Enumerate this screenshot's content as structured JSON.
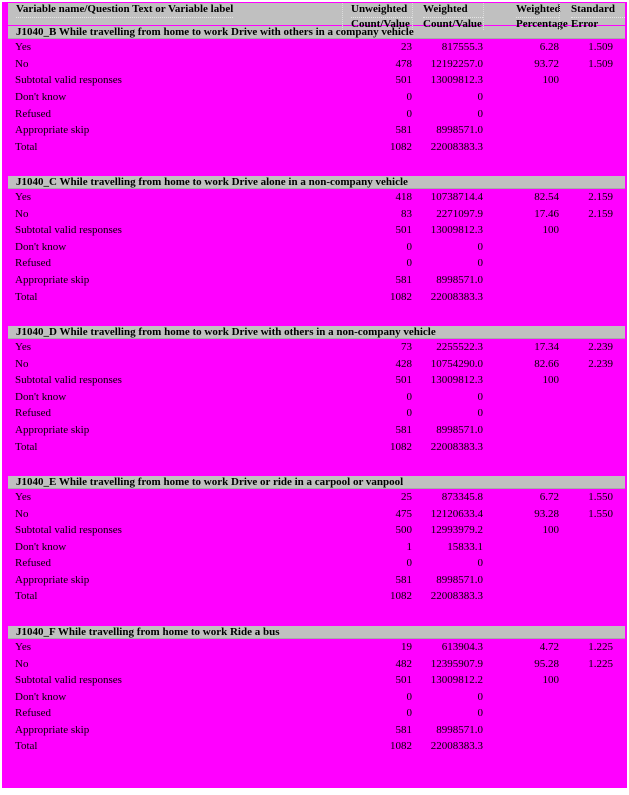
{
  "page": {
    "bg_color": "#FF00FF",
    "bar_color": "#C0C0C0",
    "text_color": "#000000"
  },
  "header": {
    "variable_label": "Variable name/Question Text or Variable label",
    "columns": [
      {
        "line1": "Unweighted",
        "line2": "Count/Value"
      },
      {
        "line1": "Weighted",
        "line2": "Count/Value"
      },
      {
        "line1": "Weighted",
        "line2": "Percentage"
      },
      {
        "line1": "Standard",
        "line2": "Error"
      }
    ]
  },
  "sections": [
    {
      "title": "J1040_B While travelling from home to work Drive with others in a company vehicle",
      "rows": [
        {
          "label": "Yes",
          "unweighted": "23",
          "weighted": "817555.3",
          "pct": "6.28",
          "se": "1.509"
        },
        {
          "label": "No",
          "unweighted": "478",
          "weighted": "12192257.0",
          "pct": "93.72",
          "se": "1.509"
        },
        {
          "label": "Subtotal valid responses",
          "unweighted": "501",
          "weighted": "13009812.3",
          "pct": "100",
          "se": ""
        },
        {
          "label": "Don't know",
          "unweighted": "0",
          "weighted": "0",
          "pct": "",
          "se": ""
        },
        {
          "label": "Refused",
          "unweighted": "0",
          "weighted": "0",
          "pct": "",
          "se": ""
        },
        {
          "label": "Appropriate skip",
          "unweighted": "581",
          "weighted": "8998571.0",
          "pct": "",
          "se": ""
        },
        {
          "label": "Total",
          "unweighted": "1082",
          "weighted": "22008383.3",
          "pct": "",
          "se": ""
        }
      ]
    },
    {
      "title": "J1040_C While travelling from home to work Drive alone in a non-company vehicle",
      "rows": [
        {
          "label": "Yes",
          "unweighted": "418",
          "weighted": "10738714.4",
          "pct": "82.54",
          "se": "2.159"
        },
        {
          "label": "No",
          "unweighted": "83",
          "weighted": "2271097.9",
          "pct": "17.46",
          "se": "2.159"
        },
        {
          "label": "Subtotal valid responses",
          "unweighted": "501",
          "weighted": "13009812.3",
          "pct": "100",
          "se": ""
        },
        {
          "label": "Don't know",
          "unweighted": "0",
          "weighted": "0",
          "pct": "",
          "se": ""
        },
        {
          "label": "Refused",
          "unweighted": "0",
          "weighted": "0",
          "pct": "",
          "se": ""
        },
        {
          "label": "Appropriate skip",
          "unweighted": "581",
          "weighted": "8998571.0",
          "pct": "",
          "se": ""
        },
        {
          "label": "Total",
          "unweighted": "1082",
          "weighted": "22008383.3",
          "pct": "",
          "se": ""
        }
      ]
    },
    {
      "title": "J1040_D While travelling from home to work Drive with others in a non-company vehicle",
      "rows": [
        {
          "label": "Yes",
          "unweighted": "73",
          "weighted": "2255522.3",
          "pct": "17.34",
          "se": "2.239"
        },
        {
          "label": "No",
          "unweighted": "428",
          "weighted": "10754290.0",
          "pct": "82.66",
          "se": "2.239"
        },
        {
          "label": "Subtotal valid responses",
          "unweighted": "501",
          "weighted": "13009812.3",
          "pct": "100",
          "se": ""
        },
        {
          "label": "Don't know",
          "unweighted": "0",
          "weighted": "0",
          "pct": "",
          "se": ""
        },
        {
          "label": "Refused",
          "unweighted": "0",
          "weighted": "0",
          "pct": "",
          "se": ""
        },
        {
          "label": "Appropriate skip",
          "unweighted": "581",
          "weighted": "8998571.0",
          "pct": "",
          "se": ""
        },
        {
          "label": "Total",
          "unweighted": "1082",
          "weighted": "22008383.3",
          "pct": "",
          "se": ""
        }
      ]
    },
    {
      "title": "J1040_E While travelling from home to work Drive or ride in a carpool or vanpool",
      "rows": [
        {
          "label": "Yes",
          "unweighted": "25",
          "weighted": "873345.8",
          "pct": "6.72",
          "se": "1.550"
        },
        {
          "label": "No",
          "unweighted": "475",
          "weighted": "12120633.4",
          "pct": "93.28",
          "se": "1.550"
        },
        {
          "label": "Subtotal valid responses",
          "unweighted": "500",
          "weighted": "12993979.2",
          "pct": "100",
          "se": ""
        },
        {
          "label": "Don't know",
          "unweighted": "1",
          "weighted": "15833.1",
          "pct": "",
          "se": ""
        },
        {
          "label": "Refused",
          "unweighted": "0",
          "weighted": "0",
          "pct": "",
          "se": ""
        },
        {
          "label": "Appropriate skip",
          "unweighted": "581",
          "weighted": "8998571.0",
          "pct": "",
          "se": ""
        },
        {
          "label": "Total",
          "unweighted": "1082",
          "weighted": "22008383.3",
          "pct": "",
          "se": ""
        }
      ]
    },
    {
      "title": "J1040_F While travelling from home to work Ride a bus",
      "rows": [
        {
          "label": "Yes",
          "unweighted": "19",
          "weighted": "613904.3",
          "pct": "4.72",
          "se": "1.225"
        },
        {
          "label": "No",
          "unweighted": "482",
          "weighted": "12395907.9",
          "pct": "95.28",
          "se": "1.225"
        },
        {
          "label": "Subtotal valid responses",
          "unweighted": "501",
          "weighted": "13009812.2",
          "pct": "100",
          "se": ""
        },
        {
          "label": "Don't know",
          "unweighted": "0",
          "weighted": "0",
          "pct": "",
          "se": ""
        },
        {
          "label": "Refused",
          "unweighted": "0",
          "weighted": "0",
          "pct": "",
          "se": ""
        },
        {
          "label": "Appropriate skip",
          "unweighted": "581",
          "weighted": "8998571.0",
          "pct": "",
          "se": ""
        },
        {
          "label": "Total",
          "unweighted": "1082",
          "weighted": "22008383.3",
          "pct": "",
          "se": ""
        }
      ]
    }
  ]
}
